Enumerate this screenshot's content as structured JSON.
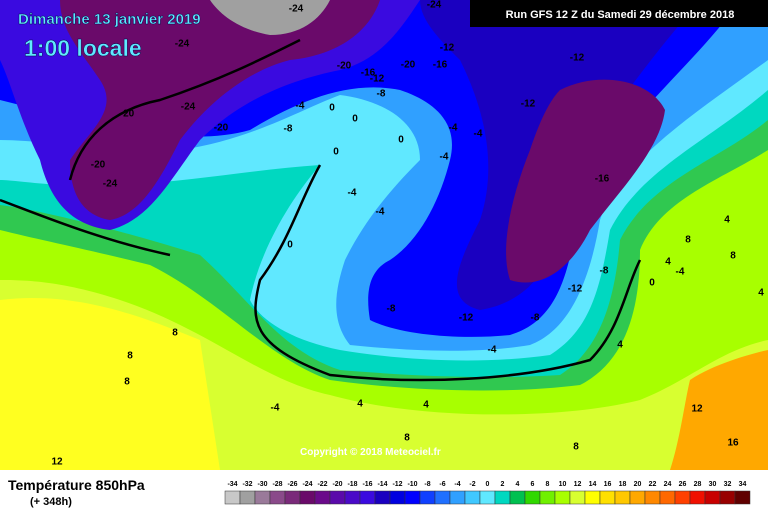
{
  "header": {
    "date": "Dimanche 13 janvier 2019",
    "time": "1:00 locale",
    "run": "Run GFS 12 Z du Samedi 29 décembre 2018"
  },
  "copyright": "Copyright © 2018 Meteociel.fr",
  "footer": {
    "title": "Température 850hPa",
    "lead": "(+ 348h)"
  },
  "scale": {
    "values": [
      -34,
      -32,
      -30,
      -28,
      -26,
      -24,
      -22,
      -20,
      -18,
      -16,
      -14,
      -12,
      -10,
      -8,
      -6,
      -4,
      -2,
      0,
      2,
      4,
      6,
      8,
      10,
      12,
      14,
      16,
      18,
      20,
      22,
      24,
      26,
      28,
      30,
      32,
      34
    ],
    "colors": [
      "#c8c8c8",
      "#a0a0a0",
      "#9a7a9a",
      "#8a4a8a",
      "#7a2a7a",
      "#6a0a6a",
      "#6a0a8a",
      "#5a0aaa",
      "#4a0ac8",
      "#3a0ae0",
      "#1a00c0",
      "#0000e0",
      "#0000ff",
      "#1040ff",
      "#2070ff",
      "#30a0ff",
      "#40c8ff",
      "#60e8ff",
      "#00d8c0",
      "#00c050",
      "#30d800",
      "#70f000",
      "#a8ff00",
      "#d8ff30",
      "#ffff00",
      "#ffe000",
      "#ffc800",
      "#ffa800",
      "#ff8800",
      "#ff6800",
      "#ff4000",
      "#f01000",
      "#c80000",
      "#980000",
      "#600000"
    ]
  },
  "contour_labels": [
    -24,
    -24,
    -24,
    -20,
    -24,
    -20,
    -20,
    -24,
    -20,
    -16,
    -12,
    -8,
    -20,
    -16,
    -12,
    -12,
    -12,
    -16,
    -8,
    -4,
    0,
    0,
    0,
    0,
    -4,
    -4,
    -4,
    -4,
    -4,
    0,
    -8,
    -12,
    -8,
    -12,
    -8,
    -4,
    4,
    4,
    4,
    -4,
    8,
    8,
    8,
    12,
    8,
    8,
    12,
    16,
    8,
    8,
    4,
    0,
    4,
    4,
    -4
  ]
}
